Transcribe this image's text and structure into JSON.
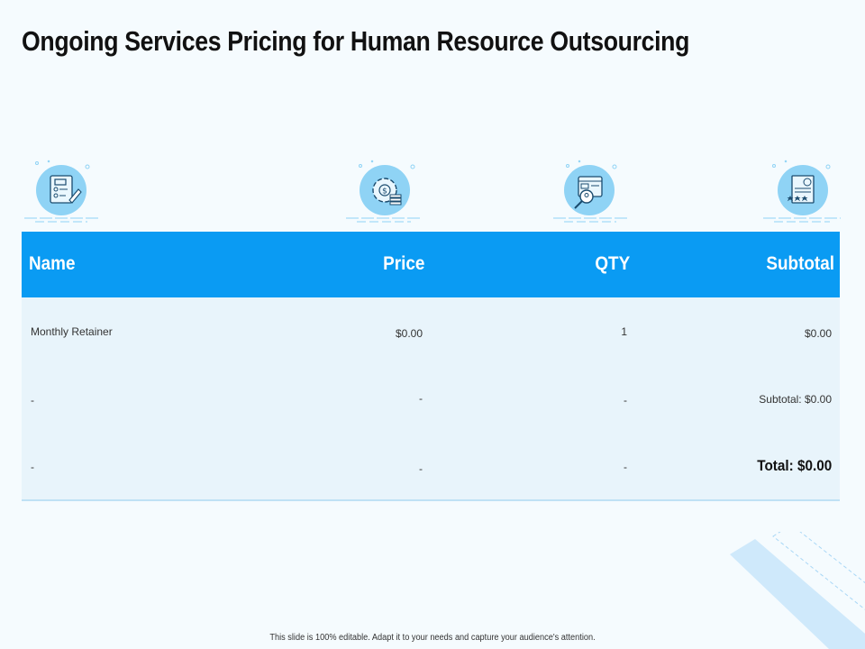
{
  "title": "Ongoing Services Pricing for Human Resource Outsourcing",
  "icons": [
    "checklist-document-icon",
    "gear-dollar-icon",
    "web-search-user-icon",
    "certificate-rating-icon"
  ],
  "colors": {
    "accent": "#0a9bf3",
    "icon_circle": "#8fd3f5",
    "row_bg": "#e8f4fb",
    "background": "#f5fbfe"
  },
  "table": {
    "headers": {
      "name": "Name",
      "price": "Price",
      "qty": "QTY",
      "subtotal": "Subtotal"
    },
    "rows": [
      {
        "name": "Monthly Retainer",
        "price": "$0.00",
        "qty": "1",
        "subtotal": "$0.00"
      },
      {
        "name": "-",
        "price": "-",
        "qty": "-",
        "subtotal": "Subtotal: $0.00"
      },
      {
        "name": "-",
        "price": "-",
        "qty": "-",
        "subtotal": "Total: $0.00"
      }
    ]
  },
  "footer": "This slide is 100% editable. Adapt it to your needs and capture your audience's attention."
}
